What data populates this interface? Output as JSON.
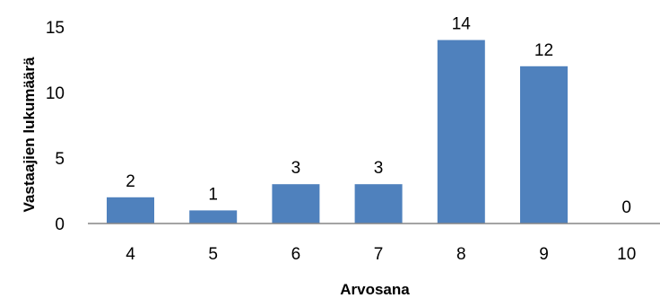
{
  "chart_data": {
    "type": "bar",
    "title": "",
    "xlabel": "Arvosana",
    "ylabel": "Vastaajien lukumäärä",
    "categories": [
      "4",
      "5",
      "6",
      "7",
      "8",
      "9",
      "10"
    ],
    "values": [
      2,
      1,
      3,
      3,
      14,
      12,
      0
    ],
    "data_labels": [
      "2",
      "1",
      "3",
      "3",
      "14",
      "12",
      "0"
    ],
    "y_ticks": [
      0,
      5,
      10,
      15
    ],
    "y_tick_labels": [
      "0",
      "5",
      "10",
      "15"
    ],
    "ylim": [
      0,
      15
    ],
    "grid": false,
    "legend": "none",
    "bar_color": "#4f81bd",
    "axis_color": "#868686"
  }
}
